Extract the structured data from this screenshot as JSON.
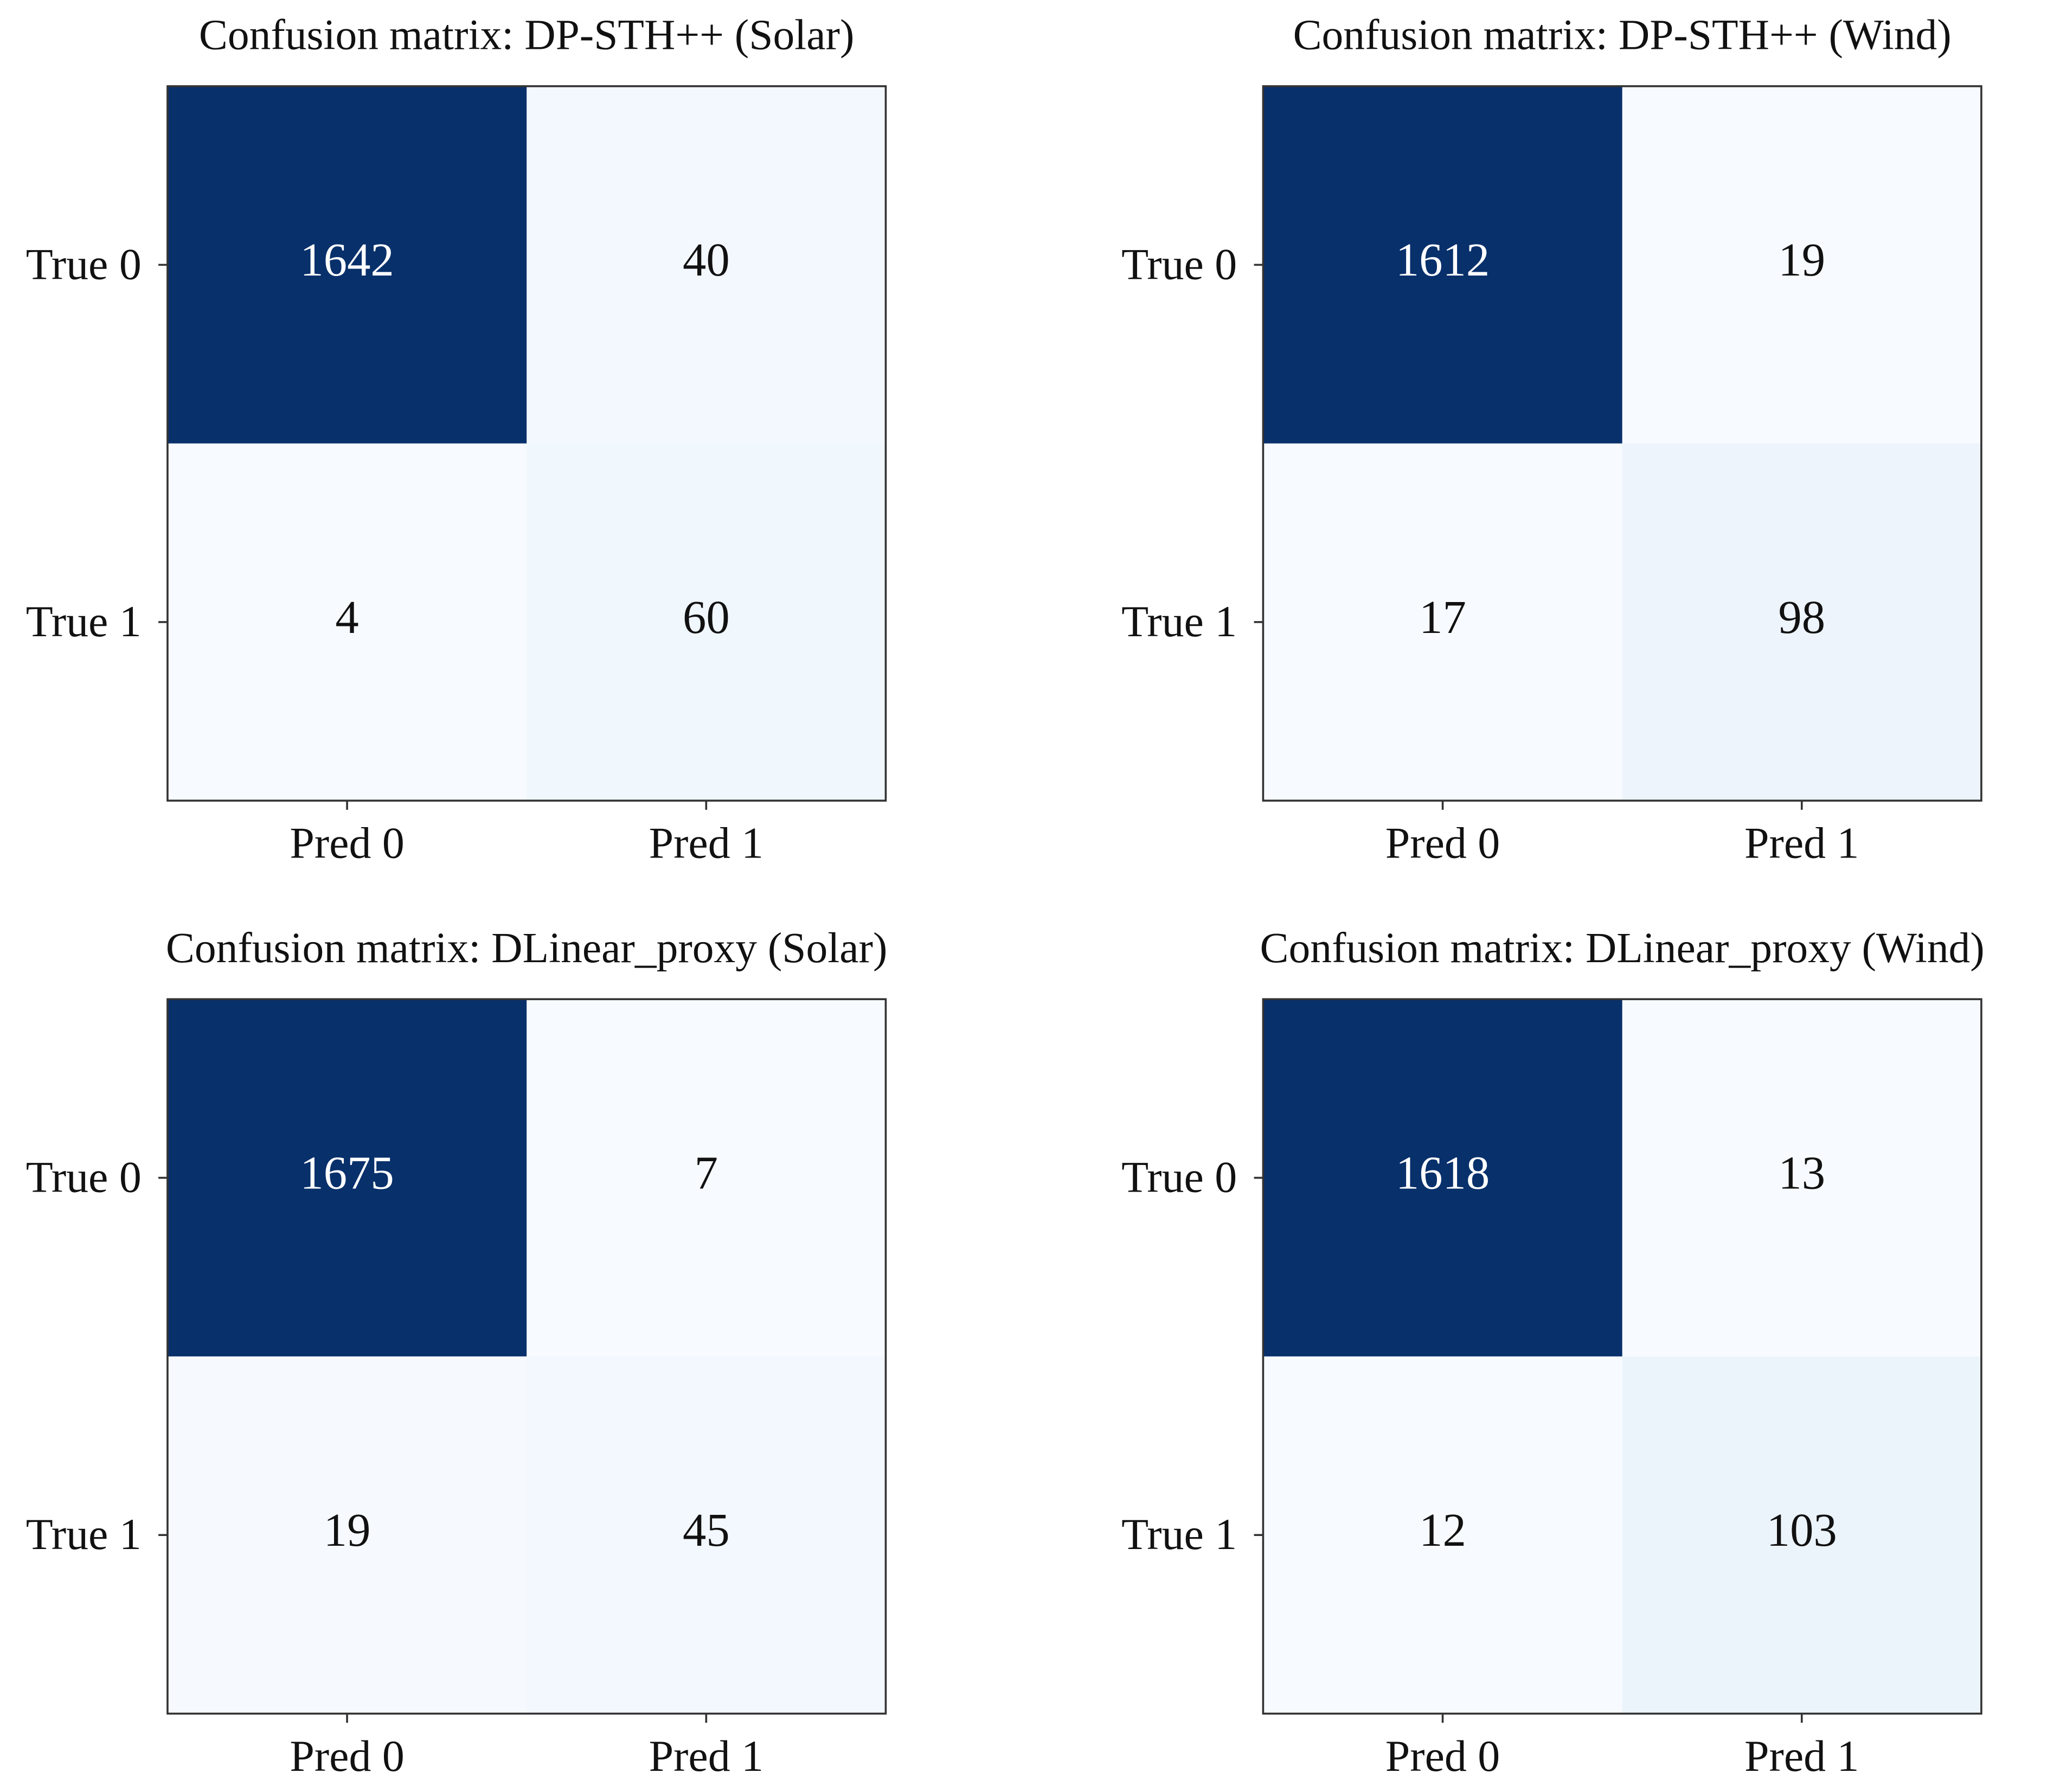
{
  "chart_data": [
    {
      "type": "heatmap",
      "title": "Confusion matrix: DP-STH++ (Solar)",
      "x_categories": [
        "Pred 0",
        "Pred 1"
      ],
      "y_categories": [
        "True 0",
        "True 1"
      ],
      "values": [
        [
          1642,
          40
        ],
        [
          4,
          60
        ]
      ],
      "colormap": "Blues"
    },
    {
      "type": "heatmap",
      "title": "Confusion matrix: DP-STH++ (Wind)",
      "x_categories": [
        "Pred 0",
        "Pred 1"
      ],
      "y_categories": [
        "True 0",
        "True 1"
      ],
      "values": [
        [
          1612,
          19
        ],
        [
          17,
          98
        ]
      ],
      "colormap": "Blues"
    },
    {
      "type": "heatmap",
      "title": "Confusion matrix: DLinear_proxy (Solar)",
      "x_categories": [
        "Pred 0",
        "Pred 1"
      ],
      "y_categories": [
        "True 0",
        "True 1"
      ],
      "values": [
        [
          1675,
          7
        ],
        [
          19,
          45
        ]
      ],
      "colormap": "Blues"
    },
    {
      "type": "heatmap",
      "title": "Confusion matrix: DLinear_proxy (Wind)",
      "x_categories": [
        "Pred 0",
        "Pred 1"
      ],
      "y_categories": [
        "True 0",
        "True 1"
      ],
      "values": [
        [
          1618,
          13
        ],
        [
          12,
          103
        ]
      ],
      "colormap": "Blues"
    }
  ]
}
